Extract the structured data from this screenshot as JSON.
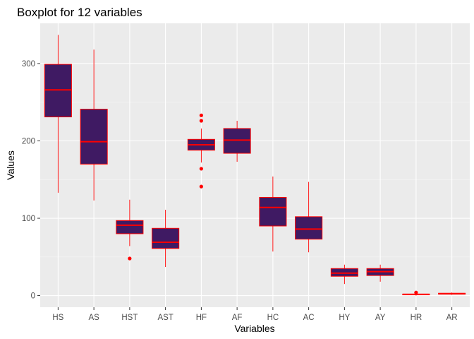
{
  "chart_data": {
    "type": "boxplot",
    "title": "Boxplot for 12 variables",
    "xlabel": "Variables",
    "ylabel": "Values",
    "ylim": [
      -15,
      352
    ],
    "yticks": [
      0,
      100,
      200,
      300
    ],
    "grid": true,
    "legend": "none",
    "colors": {
      "panel": "#ebebeb",
      "grid_major": "#ffffff",
      "grid_minor": "#f5f5f5",
      "box_fill": "#3f1a63",
      "box_line": "#ff0000",
      "tick_text": "#4d4d4d"
    },
    "categories": [
      "HS",
      "AS",
      "HST",
      "AST",
      "HF",
      "AF",
      "HC",
      "AC",
      "HY",
      "AY",
      "HR",
      "AR"
    ],
    "boxes": [
      {
        "name": "HS",
        "min": 133,
        "q1": 231,
        "median": 266,
        "q3": 299,
        "max": 337,
        "outliers": []
      },
      {
        "name": "AS",
        "min": 123,
        "q1": 170,
        "median": 199,
        "q3": 241,
        "max": 318,
        "outliers": []
      },
      {
        "name": "HST",
        "min": 64,
        "q1": 80,
        "median": 91,
        "q3": 97,
        "max": 124,
        "outliers": [
          48
        ]
      },
      {
        "name": "AST",
        "min": 37,
        "q1": 61,
        "median": 69,
        "q3": 87,
        "max": 111,
        "outliers": []
      },
      {
        "name": "HF",
        "min": 172,
        "q1": 188,
        "median": 195,
        "q3": 202,
        "max": 216,
        "outliers": [
          141,
          164,
          226,
          233
        ]
      },
      {
        "name": "AF",
        "min": 173,
        "q1": 184,
        "median": 201,
        "q3": 216,
        "max": 226,
        "outliers": []
      },
      {
        "name": "HC",
        "min": 57,
        "q1": 90,
        "median": 114,
        "q3": 127,
        "max": 154,
        "outliers": []
      },
      {
        "name": "AC",
        "min": 56,
        "q1": 73,
        "median": 86,
        "q3": 102,
        "max": 147,
        "outliers": []
      },
      {
        "name": "HY",
        "min": 15,
        "q1": 25,
        "median": 29,
        "q3": 35,
        "max": 40,
        "outliers": []
      },
      {
        "name": "AY",
        "min": 18,
        "q1": 26,
        "median": 31,
        "q3": 35,
        "max": 40,
        "outliers": []
      },
      {
        "name": "HR",
        "min": 0,
        "q1": 1,
        "median": 1.5,
        "q3": 2,
        "max": 3,
        "outliers": [
          4
        ]
      },
      {
        "name": "AR",
        "min": 1,
        "q1": 2,
        "median": 2.5,
        "q3": 3,
        "max": 4,
        "outliers": []
      }
    ]
  }
}
